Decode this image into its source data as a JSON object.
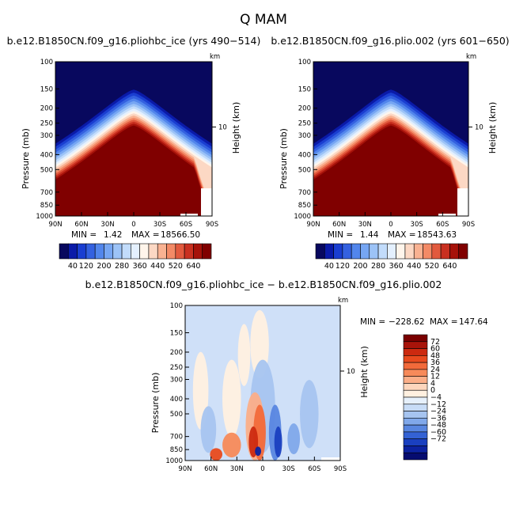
{
  "title": "Q  MAM",
  "diff_title": "b.e12.B1850CN.f09_g16.pliohbc_ice − b.e12.B1850CN.f09_g16.plio.002",
  "chart_data": [
    {
      "type": "heatmap",
      "title": "b.e12.B1850CN.f09_g16.pliohbc_ice (yrs 490−514)",
      "ylabel": "Pressure (mb)",
      "ylabel_right": "Height (km)",
      "km_ticks": [
        "10"
      ],
      "km_unit": "km",
      "x_ticks": [
        "90N",
        "60N",
        "30N",
        "0",
        "30S",
        "60S",
        "90S"
      ],
      "y_ticks": [
        "100",
        "150",
        "200",
        "250",
        "300",
        "400",
        "500",
        "700",
        "850",
        "1000"
      ],
      "stats": {
        "min_label": "MIN =",
        "min": "1.42",
        "max_label": "MAX =",
        "max": "18566.50"
      },
      "colorbar": {
        "levels": [
          "40",
          "120",
          "200",
          "280",
          "360",
          "440",
          "520",
          "640"
        ],
        "colors": [
          "#08085e",
          "#0a1aa8",
          "#1a3ed1",
          "#3461e0",
          "#5286ec",
          "#76a6f3",
          "#9cc3f7",
          "#c2dcfb",
          "#e4f0fe",
          "#fff5eb",
          "#fcd8c4",
          "#f9b292",
          "#f38a66",
          "#e25a3e",
          "#c93020",
          "#a6120a",
          "#800000"
        ]
      }
    },
    {
      "type": "heatmap",
      "title": "b.e12.B1850CN.f09_g16.plio.002 (yrs 601−650)",
      "ylabel": "Pressure (mb)",
      "ylabel_right": "Height (km)",
      "km_ticks": [
        "10"
      ],
      "km_unit": "km",
      "x_ticks": [
        "90N",
        "60N",
        "30N",
        "0",
        "30S",
        "60S",
        "90S"
      ],
      "y_ticks": [
        "100",
        "150",
        "200",
        "250",
        "300",
        "400",
        "500",
        "700",
        "850",
        "1000"
      ],
      "stats": {
        "min_label": "MIN =",
        "min": "1.44",
        "max_label": "MAX =",
        "max": "18543.63"
      },
      "colorbar": {
        "levels": [
          "40",
          "120",
          "200",
          "280",
          "360",
          "440",
          "520",
          "640"
        ],
        "colors": [
          "#08085e",
          "#0a1aa8",
          "#1a3ed1",
          "#3461e0",
          "#5286ec",
          "#76a6f3",
          "#9cc3f7",
          "#c2dcfb",
          "#e4f0fe",
          "#fff5eb",
          "#fcd8c4",
          "#f9b292",
          "#f38a66",
          "#e25a3e",
          "#c93020",
          "#a6120a",
          "#800000"
        ]
      }
    },
    {
      "type": "heatmap",
      "title": "b.e12.B1850CN.f09_g16.pliohbc_ice − b.e12.B1850CN.f09_g16.plio.002",
      "ylabel": "Pressure (mb)",
      "ylabel_right": "Height (km)",
      "km_ticks": [
        "10"
      ],
      "km_unit": "km",
      "x_ticks": [
        "90N",
        "60N",
        "30N",
        "0",
        "30S",
        "60S",
        "90S"
      ],
      "y_ticks": [
        "100",
        "150",
        "200",
        "250",
        "300",
        "400",
        "500",
        "700",
        "850",
        "1000"
      ],
      "stats": {
        "min_label": "MIN =",
        "min": "−228.62",
        "max_label": "MAX =",
        "max": "147.64"
      },
      "colorbar": {
        "levels": [
          "72",
          "60",
          "48",
          "36",
          "24",
          "12",
          "4",
          "0",
          "−4",
          "−12",
          "−24",
          "−36",
          "−48",
          "−60",
          "−72"
        ],
        "colors": [
          "#7a0000",
          "#a8140a",
          "#cc2a10",
          "#e84a1e",
          "#f26a3a",
          "#f78a5a",
          "#fbae88",
          "#fdd6bd",
          "#fff0e0",
          "#e6f0fb",
          "#c8dcf6",
          "#a6c4f0",
          "#80a8ea",
          "#5886e0",
          "#3462d4",
          "#1a40c0",
          "#0c22a0",
          "#060c70"
        ]
      }
    }
  ]
}
